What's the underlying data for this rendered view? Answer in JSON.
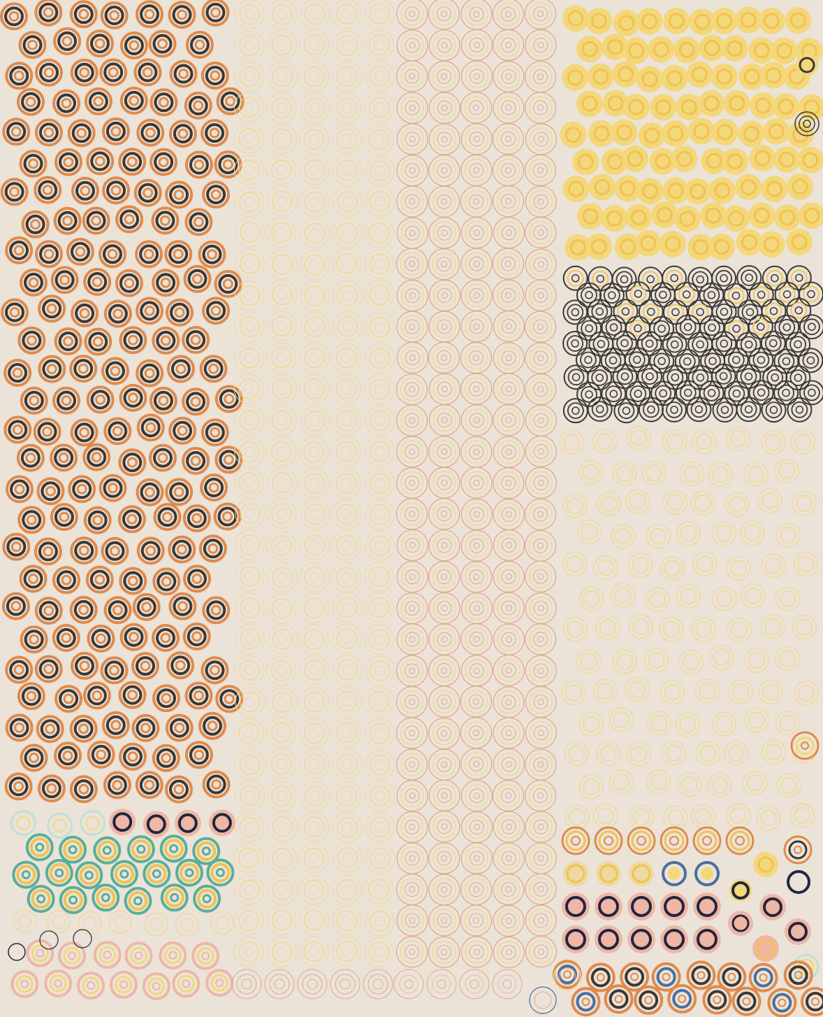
{
  "palette": {
    "background": "#ebe3d8",
    "orange": "#df8a4c",
    "dark": "#3b3835",
    "navy": "#1f2740",
    "teal": "#5aae98",
    "yellow": "#f0c252",
    "pale_yellow": "#f3d77a",
    "soft_yellow": "#eed9a0",
    "pink": "#efb6a6",
    "salmon": "#e3a68c",
    "blue": "#4a6f9e",
    "light_teal": "#bfe0d6"
  }
}
